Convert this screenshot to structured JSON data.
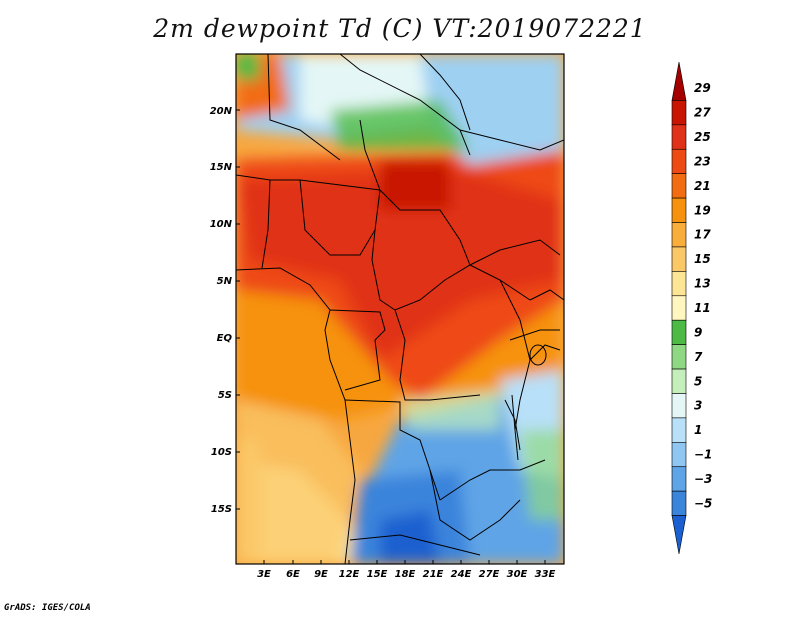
{
  "title": "2m dewpoint Td (C) VT:2019072221",
  "credit": "GrADS: IGES/COLA",
  "lat_ticks": [
    "20N",
    "15N",
    "10N",
    "5N",
    "EQ",
    "5S",
    "10S",
    "15S"
  ],
  "lon_ticks": [
    "3E",
    "6E",
    "9E",
    "12E",
    "15E",
    "18E",
    "21E",
    "24E",
    "27E",
    "30E",
    "33E"
  ],
  "colorbar": {
    "labels": [
      "29",
      "27",
      "25",
      "23",
      "21",
      "19",
      "17",
      "15",
      "13",
      "11",
      "9",
      "7",
      "5",
      "3",
      "1",
      "−1",
      "−3",
      "−5"
    ],
    "colors": [
      "#a50000",
      "#c81400",
      "#e03218",
      "#ee4a14",
      "#f26c12",
      "#f6920e",
      "#f9ad3a",
      "#fbc868",
      "#fde596",
      "#fff6c0",
      "#4cba44",
      "#8ed884",
      "#c4efba",
      "#e4f7f6",
      "#b8e0f8",
      "#8fc6f2",
      "#5ea4e6",
      "#3a84dc",
      "#1a60d0"
    ]
  }
}
